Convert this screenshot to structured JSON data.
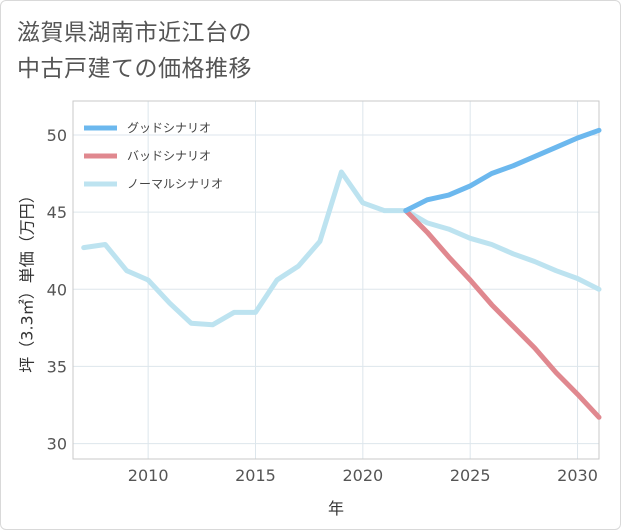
{
  "title": {
    "line1": "滋賀県湖南市近江台の",
    "line2": "中古戸建ての価格推移"
  },
  "chart_data": {
    "type": "line",
    "xlabel": "年",
    "ylabel": "坪（3.3㎡）単価（万円）",
    "xlim": [
      2006.5,
      2031
    ],
    "ylim": [
      29,
      52.2
    ],
    "x_ticks": [
      2010,
      2015,
      2020,
      2025,
      2030
    ],
    "y_ticks": [
      30,
      35,
      40,
      45,
      50
    ],
    "grid": true,
    "legend_position": "top-left",
    "series": [
      {
        "name": "グッドシナリオ",
        "color": "#6cb8ee",
        "x": [
          2022,
          2023,
          2024,
          2025,
          2026,
          2027,
          2028,
          2029,
          2030,
          2031
        ],
        "y": [
          45.1,
          45.8,
          46.1,
          46.7,
          47.5,
          48.0,
          48.6,
          49.2,
          49.8,
          50.3
        ]
      },
      {
        "name": "バッドシナリオ",
        "color": "#e0888f",
        "x": [
          2022,
          2023,
          2024,
          2025,
          2026,
          2027,
          2028,
          2029,
          2030,
          2031
        ],
        "y": [
          45.1,
          43.7,
          42.1,
          40.6,
          39.0,
          37.6,
          36.2,
          34.6,
          33.2,
          31.7
        ]
      },
      {
        "name": "ノーマルシナリオ",
        "color": "#bde3f0",
        "x": [
          2007,
          2008,
          2009,
          2010,
          2011,
          2012,
          2013,
          2014,
          2015,
          2016,
          2017,
          2018,
          2019,
          2020,
          2021,
          2022,
          2023,
          2024,
          2025,
          2026,
          2027,
          2028,
          2029,
          2030,
          2031
        ],
        "y": [
          42.7,
          42.9,
          41.2,
          40.6,
          39.1,
          37.8,
          37.7,
          38.5,
          38.5,
          40.6,
          41.5,
          43.1,
          47.6,
          45.6,
          45.1,
          45.1,
          44.3,
          43.9,
          43.3,
          42.9,
          42.3,
          41.8,
          41.2,
          40.7,
          40.0
        ]
      }
    ]
  }
}
